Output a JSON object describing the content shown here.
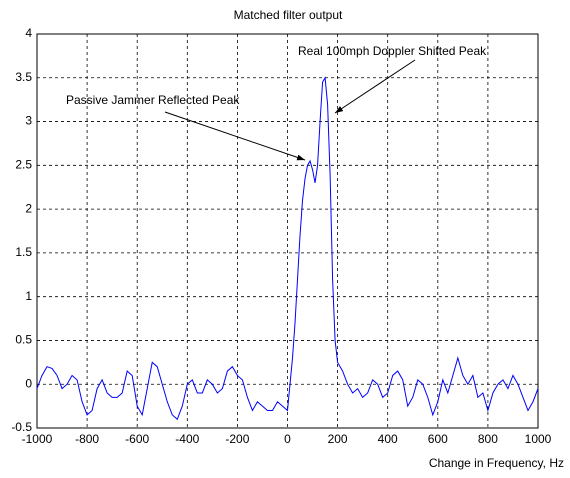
{
  "chart_data": {
    "type": "line",
    "title": "Matched filter output",
    "xlabel": "Change in Frequency, Hz",
    "annotations": [
      "Passive Jammer Reflected Peak",
      "Real 100mph Doppler Shifted Peak"
    ],
    "x": [
      -1000,
      -980,
      -960,
      -940,
      -920,
      -900,
      -880,
      -860,
      -840,
      -820,
      -800,
      -780,
      -760,
      -740,
      -720,
      -700,
      -680,
      -660,
      -640,
      -620,
      -600,
      -580,
      -560,
      -540,
      -520,
      -500,
      -480,
      -460,
      -440,
      -420,
      -400,
      -380,
      -360,
      -340,
      -320,
      -300,
      -280,
      -260,
      -240,
      -220,
      -200,
      -180,
      -160,
      -140,
      -120,
      -100,
      -80,
      -60,
      -40,
      -20,
      0,
      10,
      20,
      30,
      40,
      50,
      60,
      70,
      80,
      90,
      100,
      110,
      120,
      130,
      140,
      150,
      160,
      170,
      180,
      190,
      200,
      220,
      240,
      260,
      280,
      300,
      320,
      340,
      360,
      380,
      400,
      420,
      440,
      460,
      480,
      500,
      520,
      540,
      560,
      580,
      600,
      620,
      640,
      660,
      680,
      700,
      720,
      740,
      760,
      780,
      800,
      820,
      840,
      860,
      880,
      900,
      920,
      940,
      960,
      980,
      1000
    ],
    "series": [
      {
        "name": "output",
        "color": "#0000ff",
        "values": [
          -0.05,
          0.1,
          0.2,
          0.18,
          0.1,
          -0.05,
          0.0,
          0.1,
          0.05,
          -0.2,
          -0.35,
          -0.3,
          -0.05,
          0.05,
          -0.1,
          -0.15,
          -0.15,
          -0.1,
          0.15,
          0.1,
          -0.25,
          -0.35,
          -0.05,
          0.25,
          0.2,
          0.0,
          -0.2,
          -0.35,
          -0.4,
          -0.25,
          0.0,
          0.05,
          -0.1,
          -0.1,
          0.05,
          0.0,
          -0.1,
          -0.05,
          0.15,
          0.2,
          0.1,
          0.05,
          -0.15,
          -0.3,
          -0.2,
          -0.25,
          -0.3,
          -0.3,
          -0.2,
          -0.25,
          -0.3,
          0.0,
          0.3,
          0.7,
          1.2,
          1.7,
          2.1,
          2.35,
          2.5,
          2.55,
          2.45,
          2.3,
          2.5,
          3.0,
          3.45,
          3.5,
          3.2,
          2.4,
          1.2,
          0.5,
          0.25,
          0.15,
          0.0,
          -0.1,
          -0.05,
          -0.15,
          -0.1,
          0.05,
          0.0,
          -0.15,
          -0.1,
          0.1,
          0.15,
          0.05,
          -0.25,
          -0.15,
          0.05,
          0.0,
          -0.15,
          -0.35,
          -0.2,
          0.05,
          -0.1,
          0.1,
          0.3,
          0.1,
          0.0,
          0.1,
          -0.15,
          -0.1,
          -0.3,
          -0.1,
          0.0,
          0.05,
          -0.05,
          0.1,
          0.0,
          -0.15,
          -0.3,
          -0.2,
          -0.05
        ]
      }
    ],
    "xlim": [
      -1000,
      1000
    ],
    "xticks": [
      -1000,
      -800,
      -600,
      -400,
      -200,
      0,
      200,
      400,
      600,
      800,
      1000
    ],
    "ylim": [
      -0.5,
      4
    ],
    "yticks": [
      -0.5,
      0,
      0.5,
      1,
      1.5,
      2,
      2.5,
      3,
      3.5,
      4
    ],
    "grid": true
  }
}
